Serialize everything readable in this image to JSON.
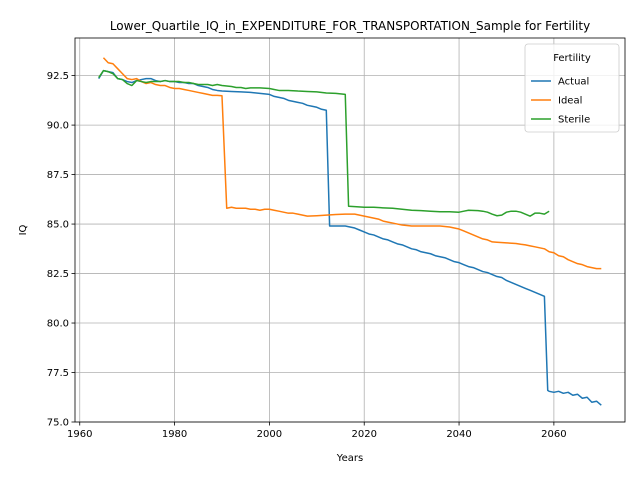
{
  "chart_data": {
    "type": "line",
    "title": "Lower_Quartile_IQ_in_EXPENDITURE_FOR_TRANSPORTATION_Sample for Fertility",
    "xlabel": "Years",
    "ylabel": "IQ",
    "xlim": [
      1959,
      2075
    ],
    "ylim": [
      75.0,
      94.4
    ],
    "x_ticks": [
      1960,
      1980,
      2000,
      2020,
      2040,
      2060
    ],
    "y_ticks": [
      75.0,
      77.5,
      80.0,
      82.5,
      85.0,
      87.5,
      90.0,
      92.5
    ],
    "x_tick_labels": [
      "1960",
      "1980",
      "2000",
      "2020",
      "2040",
      "2060"
    ],
    "y_tick_labels": [
      "75.0",
      "77.5",
      "80.0",
      "82.5",
      "85.0",
      "87.5",
      "90.0",
      "92.5"
    ],
    "grid": true,
    "legend": {
      "title": "Fertility",
      "placement": "upper-right"
    },
    "series": [
      {
        "name": "Actual",
        "color": "#1f77b4",
        "points": [
          [
            1964,
            92.35
          ],
          [
            1965,
            92.75
          ],
          [
            1966,
            92.7
          ],
          [
            1967,
            92.65
          ],
          [
            1968,
            92.35
          ],
          [
            1969,
            92.3
          ],
          [
            1970,
            92.2
          ],
          [
            1971,
            92.15
          ],
          [
            1972,
            92.25
          ],
          [
            1973,
            92.3
          ],
          [
            1974,
            92.35
          ],
          [
            1975,
            92.35
          ],
          [
            1976,
            92.25
          ],
          [
            1977,
            92.2
          ],
          [
            1978,
            92.25
          ],
          [
            1979,
            92.2
          ],
          [
            1980,
            92.2
          ],
          [
            1981,
            92.15
          ],
          [
            1982,
            92.15
          ],
          [
            1983,
            92.1
          ],
          [
            1984,
            92.1
          ],
          [
            1985,
            92.0
          ],
          [
            1986,
            91.95
          ],
          [
            1987,
            91.9
          ],
          [
            1988,
            91.8
          ],
          [
            1989,
            91.75
          ],
          [
            1990,
            91.72
          ],
          [
            1992,
            91.7
          ],
          [
            1994,
            91.68
          ],
          [
            1996,
            91.65
          ],
          [
            1998,
            91.6
          ],
          [
            2000,
            91.55
          ],
          [
            2001,
            91.45
          ],
          [
            2002,
            91.4
          ],
          [
            2003,
            91.35
          ],
          [
            2004,
            91.25
          ],
          [
            2005,
            91.2
          ],
          [
            2006,
            91.15
          ],
          [
            2007,
            91.1
          ],
          [
            2008,
            91.0
          ],
          [
            2009,
            90.95
          ],
          [
            2010,
            90.9
          ],
          [
            2011,
            90.8
          ],
          [
            2012,
            90.75
          ],
          [
            2012.7,
            84.9
          ],
          [
            2014,
            84.9
          ],
          [
            2016,
            84.9
          ],
          [
            2017,
            84.85
          ],
          [
            2018,
            84.8
          ],
          [
            2019,
            84.7
          ],
          [
            2020,
            84.6
          ],
          [
            2021,
            84.5
          ],
          [
            2022,
            84.45
          ],
          [
            2023,
            84.35
          ],
          [
            2024,
            84.25
          ],
          [
            2025,
            84.2
          ],
          [
            2026,
            84.1
          ],
          [
            2027,
            84.0
          ],
          [
            2028,
            83.95
          ],
          [
            2029,
            83.85
          ],
          [
            2030,
            83.75
          ],
          [
            2031,
            83.7
          ],
          [
            2032,
            83.6
          ],
          [
            2033,
            83.55
          ],
          [
            2034,
            83.5
          ],
          [
            2035,
            83.4
          ],
          [
            2036,
            83.35
          ],
          [
            2037,
            83.3
          ],
          [
            2038,
            83.2
          ],
          [
            2039,
            83.1
          ],
          [
            2040,
            83.05
          ],
          [
            2041,
            82.95
          ],
          [
            2042,
            82.85
          ],
          [
            2043,
            82.8
          ],
          [
            2044,
            82.7
          ],
          [
            2045,
            82.6
          ],
          [
            2046,
            82.55
          ],
          [
            2047,
            82.45
          ],
          [
            2048,
            82.35
          ],
          [
            2049,
            82.3
          ],
          [
            2050,
            82.15
          ],
          [
            2051,
            82.05
          ],
          [
            2052,
            81.95
          ],
          [
            2053,
            81.85
          ],
          [
            2054,
            81.75
          ],
          [
            2055,
            81.65
          ],
          [
            2056,
            81.55
          ],
          [
            2057,
            81.45
          ],
          [
            2058,
            81.35
          ],
          [
            2058.7,
            76.6
          ],
          [
            2059,
            76.55
          ],
          [
            2060,
            76.5
          ],
          [
            2061,
            76.55
          ],
          [
            2062,
            76.45
          ],
          [
            2063,
            76.5
          ],
          [
            2064,
            76.35
          ],
          [
            2065,
            76.4
          ],
          [
            2066,
            76.2
          ],
          [
            2067,
            76.25
          ],
          [
            2068,
            76.0
          ],
          [
            2069,
            76.05
          ],
          [
            2070,
            75.85
          ]
        ]
      },
      {
        "name": "Ideal",
        "color": "#ff7f0e",
        "points": [
          [
            1965,
            93.4
          ],
          [
            1966,
            93.15
          ],
          [
            1967,
            93.1
          ],
          [
            1968,
            92.85
          ],
          [
            1969,
            92.6
          ],
          [
            1970,
            92.35
          ],
          [
            1971,
            92.3
          ],
          [
            1972,
            92.35
          ],
          [
            1973,
            92.2
          ],
          [
            1974,
            92.1
          ],
          [
            1975,
            92.15
          ],
          [
            1976,
            92.05
          ],
          [
            1977,
            92.0
          ],
          [
            1978,
            92.0
          ],
          [
            1979,
            91.9
          ],
          [
            1980,
            91.85
          ],
          [
            1981,
            91.85
          ],
          [
            1982,
            91.8
          ],
          [
            1983,
            91.75
          ],
          [
            1984,
            91.7
          ],
          [
            1985,
            91.65
          ],
          [
            1986,
            91.6
          ],
          [
            1987,
            91.55
          ],
          [
            1988,
            91.5
          ],
          [
            1989,
            91.5
          ],
          [
            1990,
            91.48
          ],
          [
            1991,
            85.8
          ],
          [
            1992,
            85.85
          ],
          [
            1993,
            85.8
          ],
          [
            1994,
            85.8
          ],
          [
            1995,
            85.8
          ],
          [
            1996,
            85.75
          ],
          [
            1997,
            85.75
          ],
          [
            1998,
            85.7
          ],
          [
            1999,
            85.75
          ],
          [
            2000,
            85.75
          ],
          [
            2001,
            85.7
          ],
          [
            2002,
            85.65
          ],
          [
            2003,
            85.6
          ],
          [
            2004,
            85.55
          ],
          [
            2005,
            85.55
          ],
          [
            2006,
            85.5
          ],
          [
            2007,
            85.45
          ],
          [
            2008,
            85.4
          ],
          [
            2010,
            85.42
          ],
          [
            2012,
            85.45
          ],
          [
            2014,
            85.48
          ],
          [
            2016,
            85.5
          ],
          [
            2018,
            85.5
          ],
          [
            2019,
            85.45
          ],
          [
            2020,
            85.4
          ],
          [
            2021,
            85.35
          ],
          [
            2022,
            85.3
          ],
          [
            2023,
            85.25
          ],
          [
            2024,
            85.15
          ],
          [
            2025,
            85.1
          ],
          [
            2026,
            85.05
          ],
          [
            2027,
            85.0
          ],
          [
            2028,
            84.95
          ],
          [
            2030,
            84.9
          ],
          [
            2032,
            84.9
          ],
          [
            2034,
            84.9
          ],
          [
            2036,
            84.9
          ],
          [
            2038,
            84.85
          ],
          [
            2039,
            84.8
          ],
          [
            2040,
            84.75
          ],
          [
            2041,
            84.65
          ],
          [
            2042,
            84.55
          ],
          [
            2043,
            84.45
          ],
          [
            2044,
            84.35
          ],
          [
            2045,
            84.25
          ],
          [
            2046,
            84.2
          ],
          [
            2047,
            84.1
          ],
          [
            2048,
            84.08
          ],
          [
            2050,
            84.05
          ],
          [
            2052,
            84.02
          ],
          [
            2053,
            83.98
          ],
          [
            2054,
            83.95
          ],
          [
            2055,
            83.9
          ],
          [
            2056,
            83.85
          ],
          [
            2057,
            83.8
          ],
          [
            2058,
            83.75
          ],
          [
            2059,
            83.6
          ],
          [
            2060,
            83.55
          ],
          [
            2061,
            83.4
          ],
          [
            2062,
            83.35
          ],
          [
            2063,
            83.2
          ],
          [
            2064,
            83.1
          ],
          [
            2065,
            83.0
          ],
          [
            2066,
            82.95
          ],
          [
            2067,
            82.85
          ],
          [
            2068,
            82.8
          ],
          [
            2069,
            82.75
          ],
          [
            2070,
            82.75
          ]
        ]
      },
      {
        "name": "Sterile",
        "color": "#2ca02c",
        "points": [
          [
            1964,
            92.4
          ],
          [
            1965,
            92.75
          ],
          [
            1966,
            92.7
          ],
          [
            1967,
            92.6
          ],
          [
            1968,
            92.35
          ],
          [
            1969,
            92.3
          ],
          [
            1970,
            92.1
          ],
          [
            1971,
            92.0
          ],
          [
            1972,
            92.25
          ],
          [
            1973,
            92.2
          ],
          [
            1974,
            92.15
          ],
          [
            1975,
            92.2
          ],
          [
            1976,
            92.2
          ],
          [
            1977,
            92.2
          ],
          [
            1978,
            92.25
          ],
          [
            1979,
            92.2
          ],
          [
            1980,
            92.2
          ],
          [
            1981,
            92.2
          ],
          [
            1982,
            92.15
          ],
          [
            1983,
            92.15
          ],
          [
            1984,
            92.1
          ],
          [
            1985,
            92.05
          ],
          [
            1986,
            92.05
          ],
          [
            1987,
            92.05
          ],
          [
            1988,
            92.0
          ],
          [
            1989,
            92.05
          ],
          [
            1990,
            92.0
          ],
          [
            1992,
            91.95
          ],
          [
            1993,
            91.9
          ],
          [
            1994,
            91.9
          ],
          [
            1995,
            91.85
          ],
          [
            1996,
            91.88
          ],
          [
            1998,
            91.88
          ],
          [
            2000,
            91.85
          ],
          [
            2001,
            91.8
          ],
          [
            2002,
            91.75
          ],
          [
            2004,
            91.75
          ],
          [
            2006,
            91.72
          ],
          [
            2008,
            91.7
          ],
          [
            2010,
            91.68
          ],
          [
            2012,
            91.62
          ],
          [
            2014,
            91.6
          ],
          [
            2016,
            91.55
          ],
          [
            2016.7,
            85.9
          ],
          [
            2018,
            85.88
          ],
          [
            2020,
            85.85
          ],
          [
            2022,
            85.85
          ],
          [
            2024,
            85.82
          ],
          [
            2026,
            85.8
          ],
          [
            2028,
            85.75
          ],
          [
            2030,
            85.7
          ],
          [
            2032,
            85.68
          ],
          [
            2034,
            85.65
          ],
          [
            2036,
            85.62
          ],
          [
            2038,
            85.62
          ],
          [
            2040,
            85.6
          ],
          [
            2041,
            85.65
          ],
          [
            2042,
            85.7
          ],
          [
            2044,
            85.68
          ],
          [
            2045,
            85.65
          ],
          [
            2046,
            85.6
          ],
          [
            2047,
            85.5
          ],
          [
            2048,
            85.42
          ],
          [
            2049,
            85.45
          ],
          [
            2050,
            85.6
          ],
          [
            2051,
            85.65
          ],
          [
            2052,
            85.65
          ],
          [
            2053,
            85.6
          ],
          [
            2054,
            85.5
          ],
          [
            2055,
            85.4
          ],
          [
            2056,
            85.55
          ],
          [
            2057,
            85.55
          ],
          [
            2058,
            85.5
          ],
          [
            2059,
            85.65
          ]
        ]
      }
    ]
  }
}
